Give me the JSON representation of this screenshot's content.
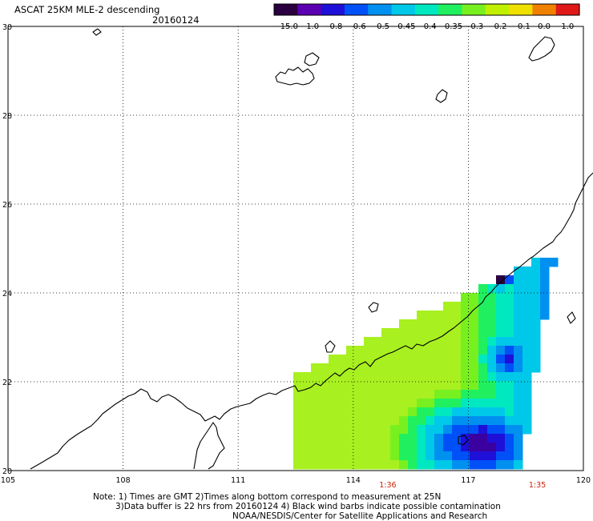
{
  "header": {
    "title": "ASCAT 25KM MLE-2 descending",
    "date": "20160124"
  },
  "colorbar": {
    "labels": [
      "−15.0",
      "−1.0",
      "−0.8",
      "−0.6",
      "−0.5",
      "−0.45",
      "−0.4",
      "−0.35",
      "−0.3",
      "−0.2",
      "−0.1",
      "0.0",
      "1.0"
    ],
    "colors": [
      "#2a0040",
      "#5a00b0",
      "#1e10d8",
      "#0050f8",
      "#0090f0",
      "#00c8e8",
      "#00e8c0",
      "#20f060",
      "#78f020",
      "#c0f000",
      "#f0e000",
      "#f08000",
      "#e01818"
    ]
  },
  "map": {
    "lat_labels": [
      "30",
      "28",
      "26",
      "24",
      "22",
      "20"
    ],
    "lon_labels": [
      "105",
      "108",
      "111",
      "114",
      "117",
      "120"
    ],
    "pass_times": [
      {
        "lon": 114.9,
        "label": "1:36"
      },
      {
        "lon": 118.8,
        "label": "1:35"
      }
    ],
    "time_color": "#d02000"
  },
  "footer": {
    "line1": "Note: 1) Times are GMT 2)Times along bottom correspond to measurement at 25N",
    "line2": "3)Data buffer is 22 hrs from 20160124 4) Black wind barbs indicate possible contamination",
    "line3": "NOAA/NESDIS/Center for Satellite Applications and Research"
  }
}
